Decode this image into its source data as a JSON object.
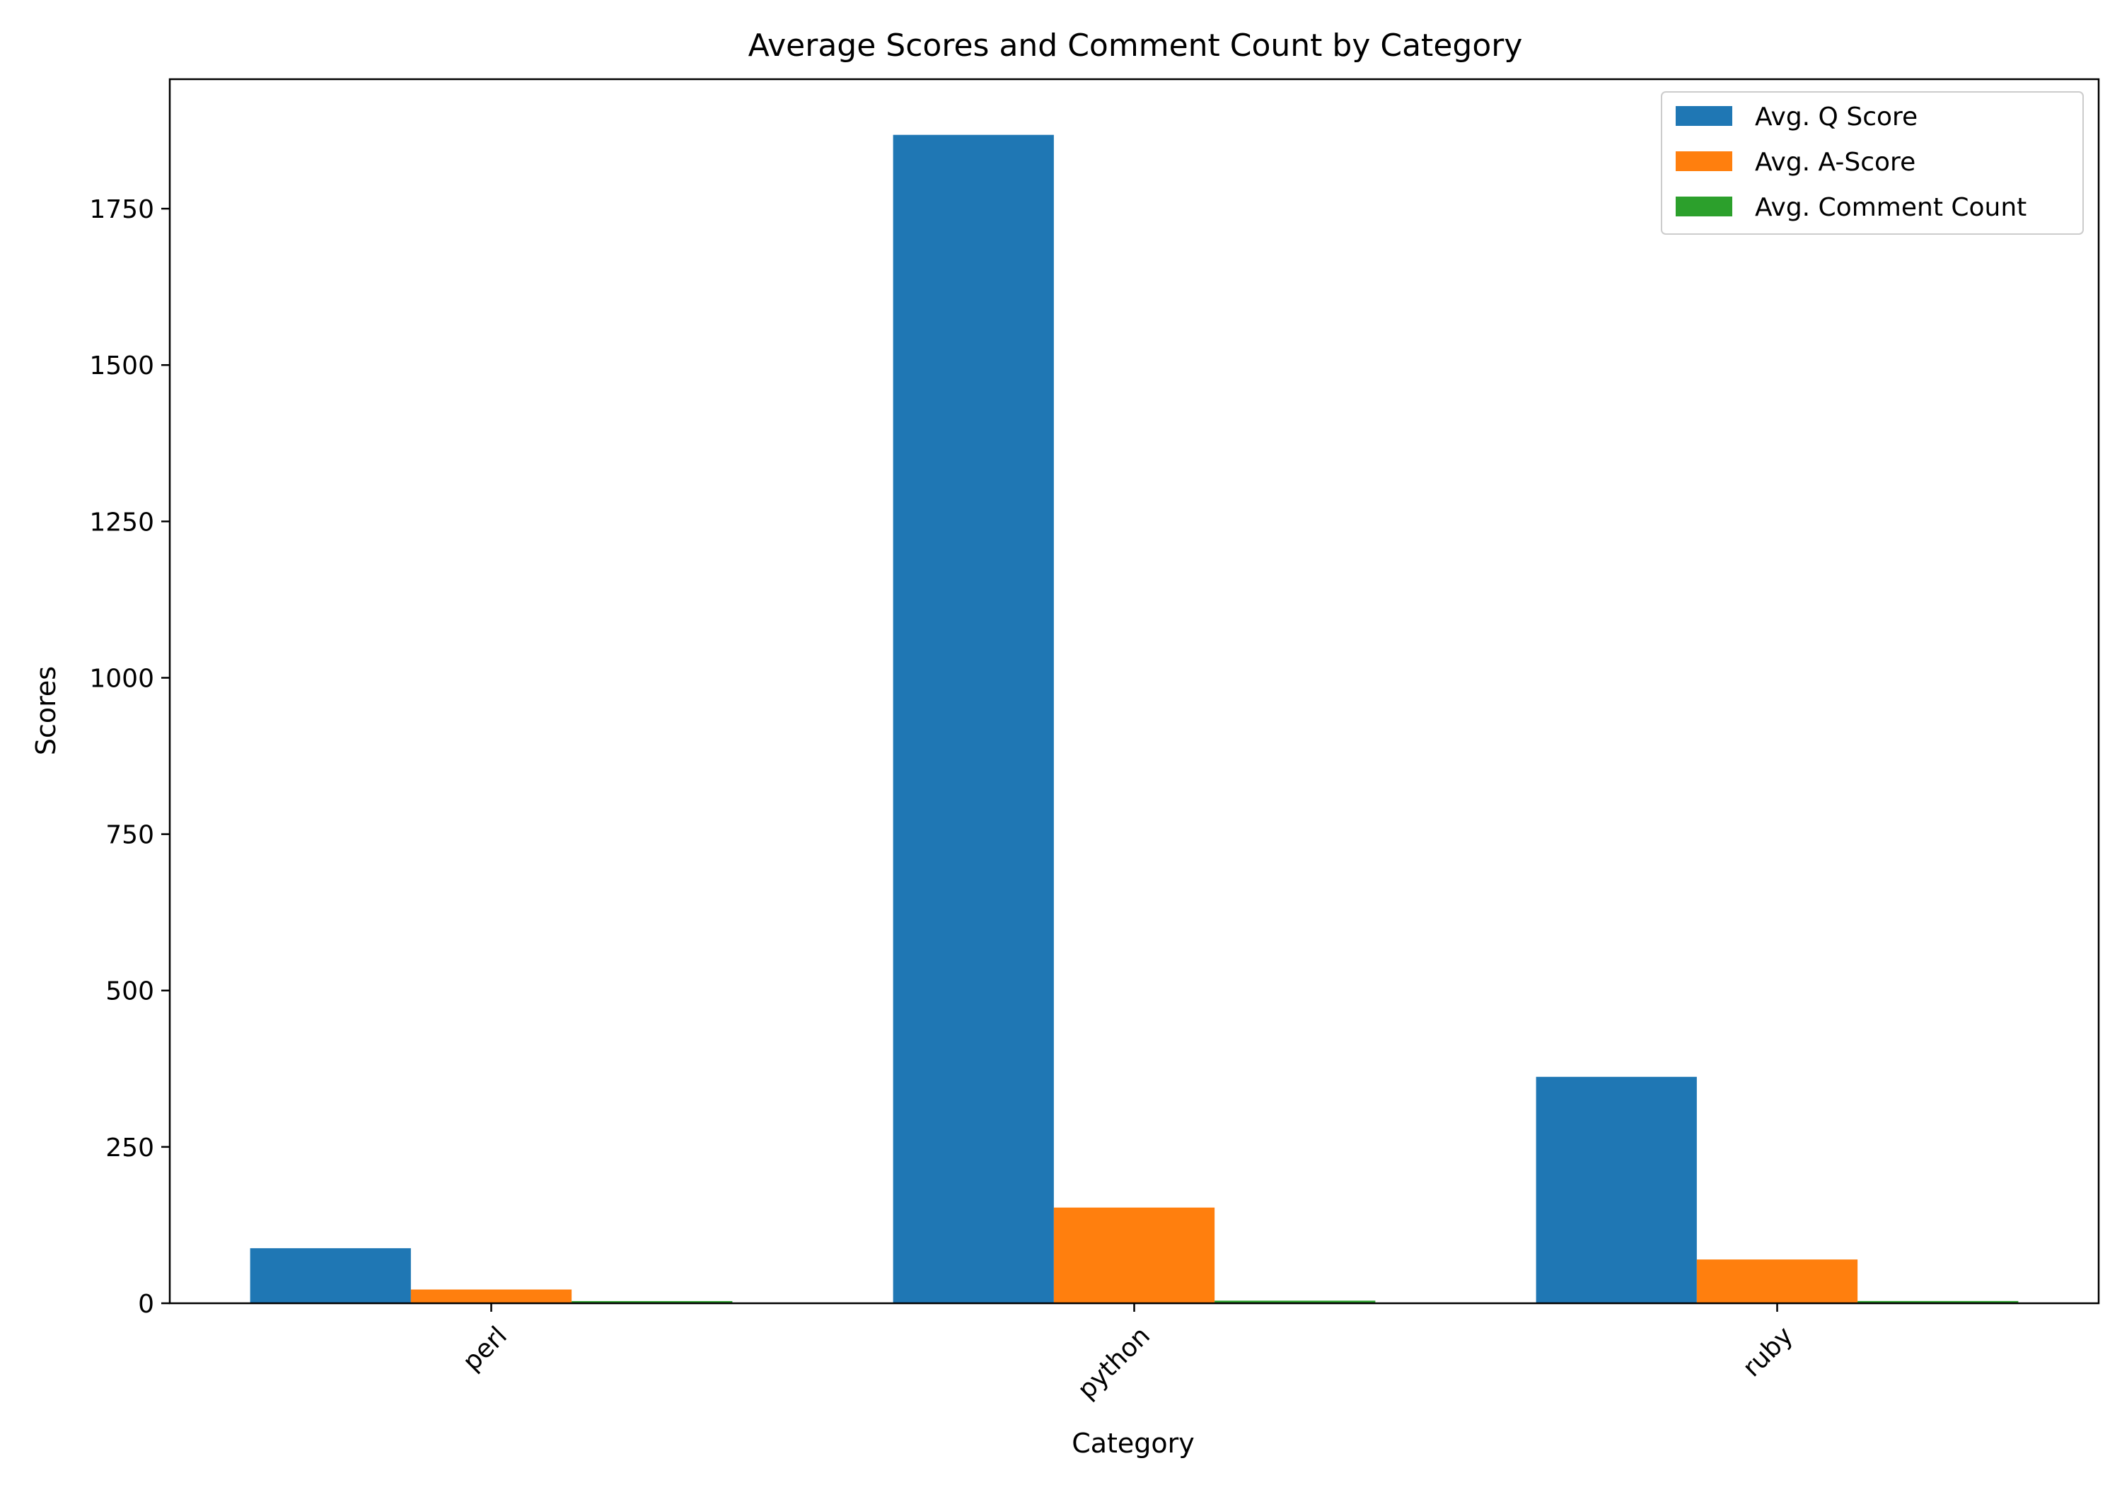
{
  "chart_data": {
    "type": "bar",
    "title": "Average Scores and Comment Count by Category",
    "xlabel": "Category",
    "ylabel": "Scores",
    "categories": [
      "perl",
      "python",
      "ruby"
    ],
    "series": [
      {
        "name": "Avg. Q Score",
        "color": "#1f77b4",
        "values": [
          88,
          1868,
          362
        ]
      },
      {
        "name": "Avg. A-Score",
        "color": "#ff7f0e",
        "values": [
          22,
          153,
          70
        ]
      },
      {
        "name": "Avg. Comment Count",
        "color": "#2ca02c",
        "values": [
          3.5,
          4.2,
          3.6
        ]
      }
    ],
    "ylim": [
      0,
      1957
    ],
    "yticks": [
      0,
      250,
      500,
      750,
      1000,
      1250,
      1500,
      1750
    ],
    "grid": false,
    "legend_position": "top-right"
  }
}
